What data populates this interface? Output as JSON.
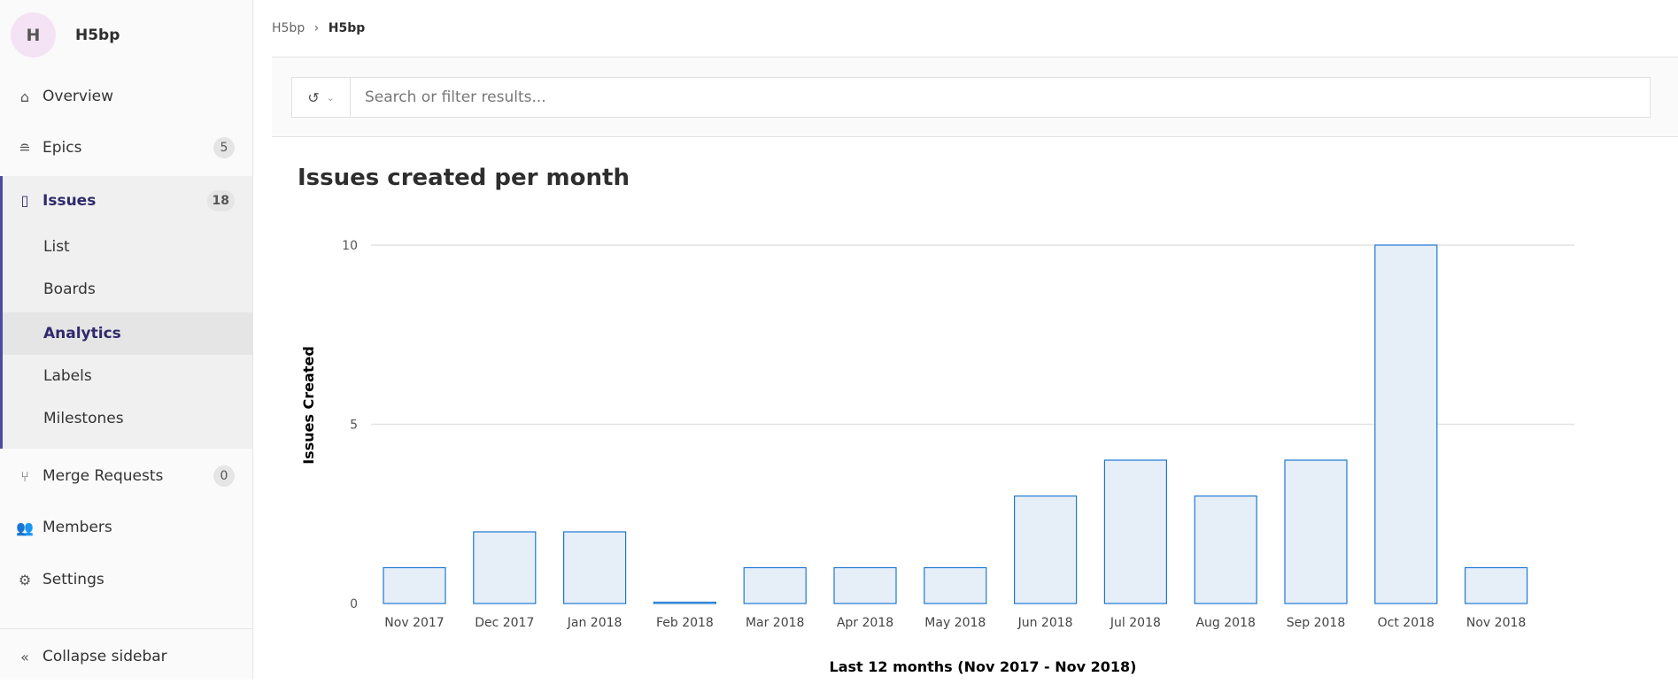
{
  "sidebar": {
    "context": {
      "avatar": "H",
      "name": "H5bp"
    },
    "items": [
      {
        "label": "Overview",
        "icon": "home-icon"
      },
      {
        "label": "Epics",
        "icon": "epic-icon",
        "badge": "5"
      },
      {
        "label": "Issues",
        "icon": "issues-icon",
        "badge": "18"
      },
      {
        "label": "Merge Requests",
        "icon": "merge-request-icon",
        "badge": "0"
      },
      {
        "label": "Members",
        "icon": "users-icon"
      },
      {
        "label": "Settings",
        "icon": "gear-icon"
      }
    ],
    "sub_items": [
      "List",
      "Boards",
      "Analytics",
      "Labels",
      "Milestones"
    ],
    "collapse_label": "Collapse sidebar"
  },
  "breadcrumb": [
    "H5bp",
    "H5bp"
  ],
  "filter": {
    "placeholder": "Search or filter results...",
    "value": ""
  },
  "page_title": "Issues created per month",
  "colors": {
    "bar_fill": "#e6eef8",
    "bar_stroke": "#1f78d1",
    "accent": "#4b4ba3"
  },
  "chart_data": {
    "type": "bar",
    "categories": [
      "Nov 2017",
      "Dec 2017",
      "Jan 2018",
      "Feb 2018",
      "Mar 2018",
      "Apr 2018",
      "May 2018",
      "Jun 2018",
      "Jul 2018",
      "Aug 2018",
      "Sep 2018",
      "Oct 2018",
      "Nov 2018"
    ],
    "values": [
      1,
      2,
      2,
      0,
      1,
      1,
      1,
      3,
      4,
      3,
      4,
      10,
      1
    ],
    "xlabel": "Last 12 months (Nov 2017 - Nov 2018)",
    "ylabel": "Issues Created",
    "ylim": [
      0,
      10
    ],
    "yticks": [
      0,
      5,
      10
    ],
    "grid": true
  }
}
